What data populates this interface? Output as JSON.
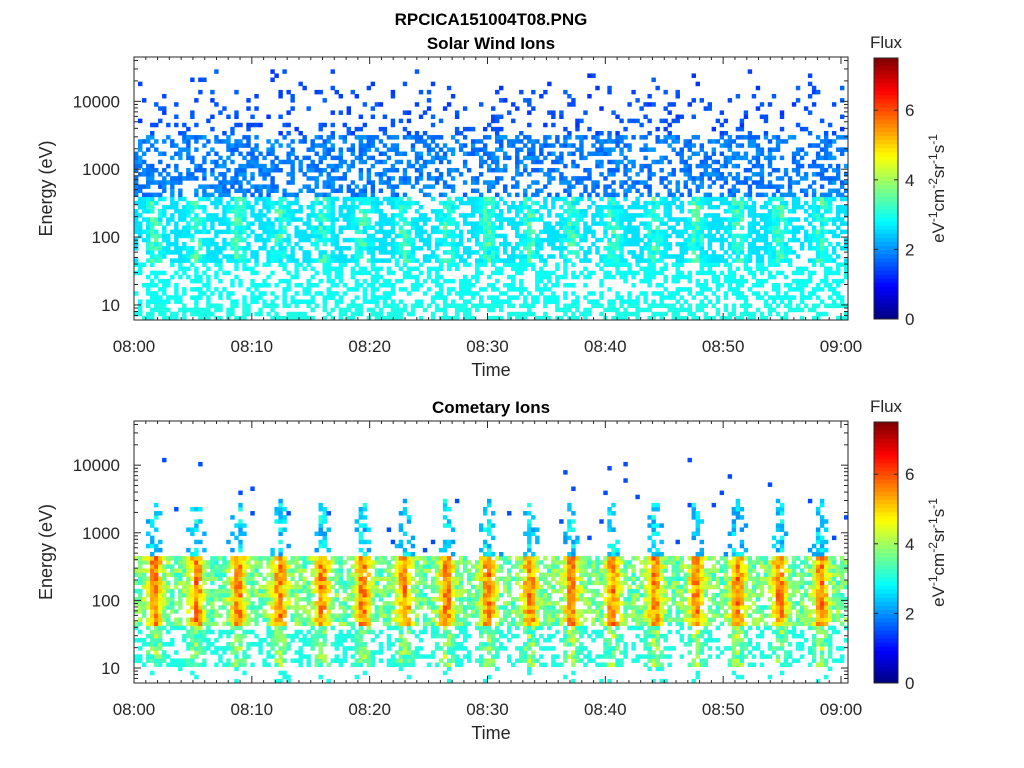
{
  "figure": {
    "title": "RPCICA151004T08.PNG"
  },
  "chart_data": [
    {
      "type": "heatmap",
      "title": "Solar Wind Ions",
      "xlabel": "Time",
      "ylabel": "Energy (eV)",
      "x_ticks": [
        "08:00",
        "08:10",
        "08:20",
        "08:30",
        "08:40",
        "08:50",
        "09:00"
      ],
      "y_ticks": [
        "10",
        "100",
        "1000",
        "10000"
      ],
      "y_scale": "log",
      "ylim": [
        6,
        45000
      ],
      "colorbar": {
        "title": "Flux",
        "label": "eV-1cm-2sr-1s-1",
        "ticks": [
          "0",
          "2",
          "4",
          "6"
        ],
        "range": [
          0,
          7.5
        ],
        "colormap": "jet"
      },
      "bands": [
        {
          "range": "10-30 eV",
          "level": 3
        },
        {
          "range": "30-400 eV",
          "level": 3
        },
        {
          "range": "400-30000 eV",
          "level": 1.7
        }
      ]
    },
    {
      "type": "heatmap",
      "title": "Cometary Ions",
      "xlabel": "Time",
      "ylabel": "Energy (eV)",
      "x_ticks": [
        "08:00",
        "08:10",
        "08:20",
        "08:30",
        "08:40",
        "08:50",
        "09:00"
      ],
      "y_ticks": [
        "10",
        "100",
        "1000",
        "10000"
      ],
      "y_scale": "log",
      "ylim": [
        6,
        45000
      ],
      "colorbar": {
        "title": "Flux",
        "label": "eV-1cm-2sr-1s-1",
        "ticks": [
          "0",
          "2",
          "4",
          "6"
        ],
        "range": [
          0,
          7.5
        ],
        "colormap": "jet"
      },
      "bands": [
        {
          "range": "30-500 eV",
          "level": 4.5
        },
        {
          "range": "500-5000 eV",
          "level": 2.2
        }
      ]
    }
  ]
}
